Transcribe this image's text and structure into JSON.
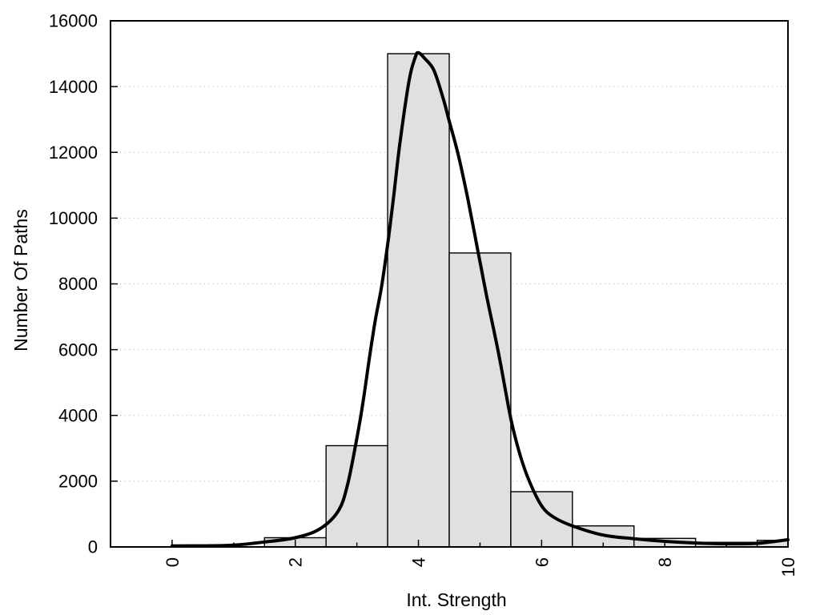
{
  "chart_data": {
    "type": "bar",
    "subtype": "histogram-with-density-curve",
    "title": "",
    "xlabel": "Int. Strength",
    "ylabel": "Number Of Paths",
    "xlim": [
      -1,
      10
    ],
    "ylim": [
      0,
      16000
    ],
    "x_major_ticks": [
      0,
      2,
      4,
      6,
      8,
      10
    ],
    "x_major_tick_labels": [
      "0",
      "2",
      "4",
      "6",
      "8",
      "10"
    ],
    "x_minor_ticks": [
      1,
      3,
      5,
      7,
      9
    ],
    "y_ticks": [
      0,
      2000,
      4000,
      6000,
      8000,
      10000,
      12000,
      14000,
      16000
    ],
    "y_tick_labels": [
      "0",
      "2000",
      "4000",
      "6000",
      "8000",
      "10000",
      "12000",
      "14000",
      "16000"
    ],
    "x_tick_labels_rotated": true,
    "grid": {
      "horizontal_dotted_at": [
        2000,
        4000,
        6000,
        8000,
        10000,
        12000,
        14000
      ],
      "vertical": false
    },
    "legend": {
      "visible": false
    },
    "bars": {
      "bin_edges": [
        1.5,
        2.5,
        3.5,
        4.5,
        5.5,
        6.5,
        7.5,
        8.5,
        9.5,
        10.5
      ],
      "counts": [
        280,
        3080,
        15000,
        8940,
        1680,
        640,
        260,
        140,
        200
      ]
    },
    "curve": {
      "x": [
        0,
        0.5,
        1,
        1.5,
        2,
        2.4,
        2.7,
        2.85,
        3.0,
        3.1,
        3.2,
        3.3,
        3.4,
        3.5,
        3.6,
        3.7,
        3.85,
        3.95,
        4.0,
        4.1,
        4.25,
        4.4,
        4.5,
        4.65,
        4.8,
        4.95,
        5.1,
        5.3,
        5.5,
        5.65,
        5.8,
        6.0,
        6.2,
        6.5,
        7.0,
        7.5,
        8.0,
        8.5,
        9.0,
        9.5,
        10.0
      ],
      "y": [
        30,
        35,
        55,
        150,
        280,
        550,
        1100,
        1900,
        3300,
        4400,
        5700,
        6900,
        7900,
        9200,
        10700,
        12300,
        14200,
        14900,
        15030,
        14860,
        14500,
        13650,
        12950,
        11900,
        10600,
        9150,
        7700,
        5900,
        3900,
        2800,
        2000,
        1250,
        900,
        640,
        360,
        250,
        170,
        120,
        95,
        110,
        220
      ],
      "peak": {
        "x": 4.0,
        "y": 15030
      }
    }
  },
  "colors": {
    "background": "#ffffff",
    "bar_fill": "#e0e0e0",
    "bar_stroke": "#000000",
    "curve": "#000000",
    "grid": "#c9c9c9",
    "axis": "#000000",
    "text": "#000000"
  }
}
